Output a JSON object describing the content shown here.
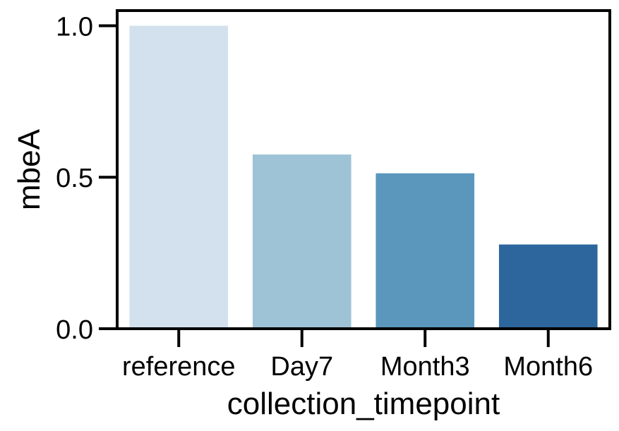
{
  "chart_data": {
    "type": "bar",
    "categories": [
      "reference",
      "Day7",
      "Month3",
      "Month6"
    ],
    "values": [
      1.0,
      0.575,
      0.513,
      0.278
    ],
    "colors": [
      "#d3e1ee",
      "#9ec3d6",
      "#5b97bd",
      "#2d659d"
    ],
    "xlabel": "collection_timepoint",
    "ylabel": "mbeA",
    "ylim": [
      0,
      1.05
    ],
    "yticks": [
      0.0,
      0.5,
      1.0
    ],
    "ytick_labels": [
      "0.0",
      "0.5",
      "1.0"
    ],
    "grid": false
  }
}
